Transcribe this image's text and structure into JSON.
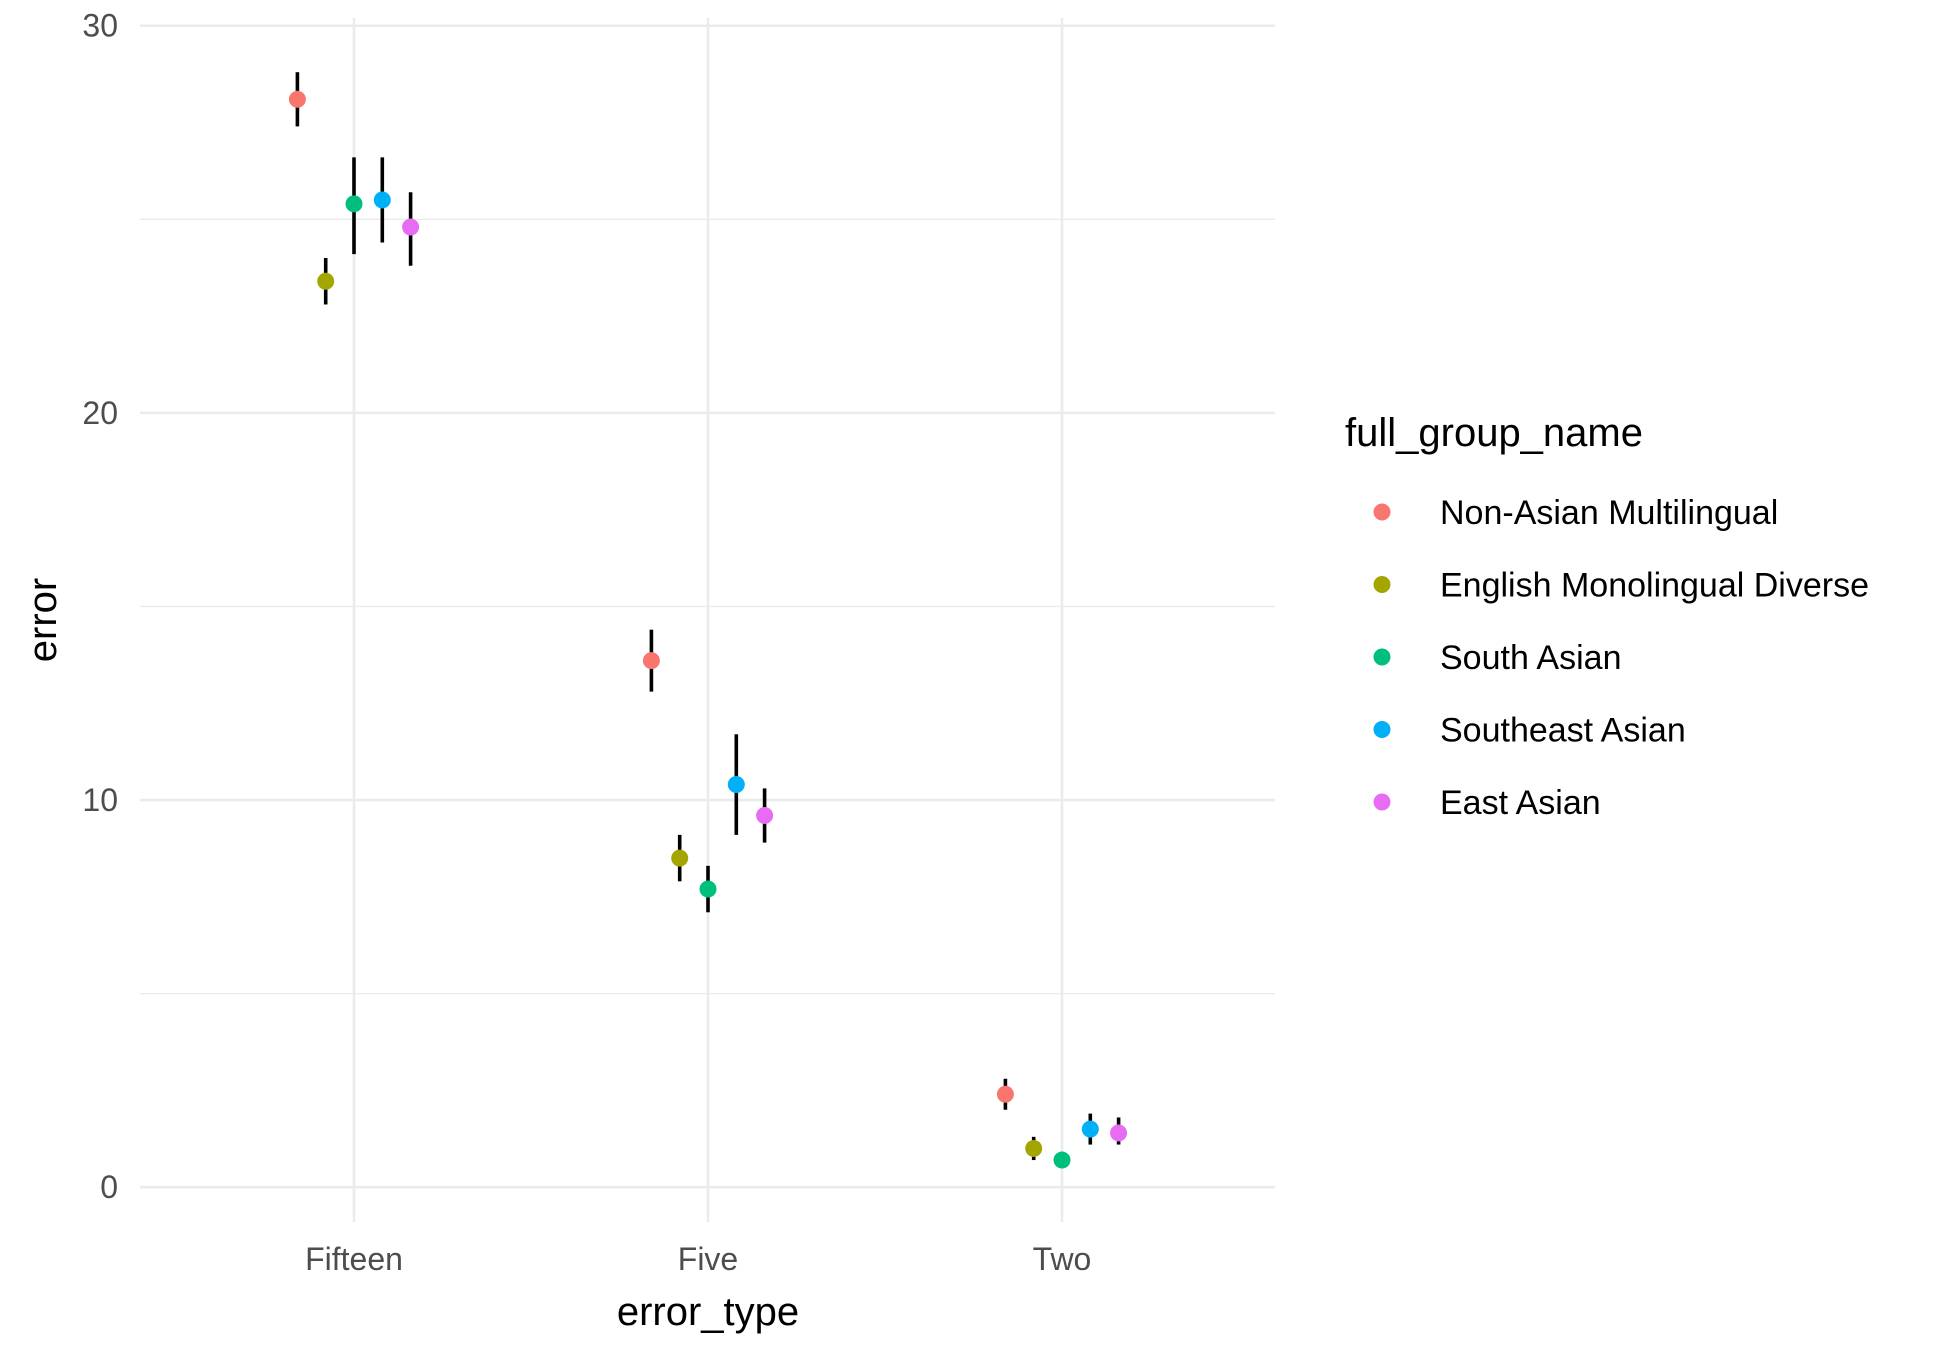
{
  "chart_data": {
    "type": "scatter",
    "xlabel": "error_type",
    "ylabel": "error",
    "categories": [
      "Fifteen",
      "Five",
      "Two"
    ],
    "ylim": [
      -0.9,
      30.2
    ],
    "yticks": [
      0,
      10,
      20,
      30
    ],
    "y_minor_ticks": [
      5,
      15,
      25
    ],
    "grid": true,
    "legend": {
      "title": "full_group_name",
      "position": "right"
    },
    "series": [
      {
        "name": "Non-Asian Multilingual",
        "color": "#F8766D",
        "values": [
          28.1,
          13.6,
          2.4
        ],
        "lower": [
          27.4,
          12.8,
          2.0
        ],
        "upper": [
          28.8,
          14.4,
          2.8
        ]
      },
      {
        "name": "English Monolingual Diverse",
        "color": "#A3A500",
        "values": [
          23.4,
          8.5,
          1.0
        ],
        "lower": [
          22.8,
          7.9,
          0.7
        ],
        "upper": [
          24.0,
          9.1,
          1.3
        ]
      },
      {
        "name": "South Asian",
        "color": "#00BF7D",
        "values": [
          25.4,
          7.7,
          0.7
        ],
        "lower": [
          24.1,
          7.1,
          0.5
        ],
        "upper": [
          26.6,
          8.3,
          0.9
        ]
      },
      {
        "name": "Southeast Asian",
        "color": "#00B0F6",
        "values": [
          25.5,
          10.4,
          1.5
        ],
        "lower": [
          24.4,
          9.1,
          1.1
        ],
        "upper": [
          26.6,
          11.7,
          1.9
        ]
      },
      {
        "name": "East Asian",
        "color": "#E76BF3",
        "values": [
          24.8,
          9.6,
          1.4
        ],
        "lower": [
          23.8,
          8.9,
          1.1
        ],
        "upper": [
          25.7,
          10.3,
          1.8
        ]
      }
    ]
  }
}
